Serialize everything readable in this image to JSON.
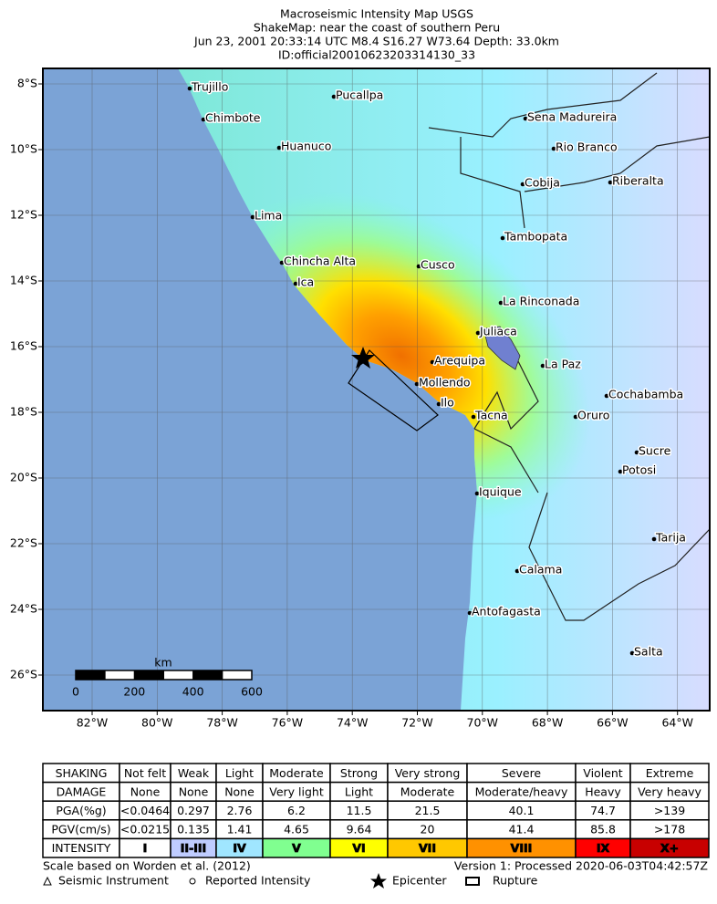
{
  "header": {
    "lines": [
      "Macroseismic Intensity Map USGS",
      "ShakeMap: near the coast of southern Peru",
      "Jun 23, 2001 20:33:14 UTC M8.4 S16.27 W73.64 Depth: 33.0km",
      "ID:official20010623203314130_33"
    ]
  },
  "map": {
    "lat_labels": [
      "8°S",
      "10°S",
      "12°S",
      "14°S",
      "16°S",
      "18°S",
      "20°S",
      "22°S",
      "24°S",
      "26°S"
    ],
    "lon_labels": [
      "82°W",
      "80°W",
      "78°W",
      "76°W",
      "74°W",
      "72°W",
      "70°W",
      "68°W",
      "66°W",
      "64°W"
    ],
    "cities": [
      "Trujillo",
      "Pucallpa",
      "Chimbote",
      "Sena Madureira",
      "Huanuco",
      "Rio Branco",
      "Cobija",
      "Riberalta",
      "Lima",
      "Tambopata",
      "Chincha Alta",
      "Cusco",
      "Ica",
      "La Rinconada",
      "Juliaca",
      "Arequipa",
      "La Paz",
      "Mollendo",
      "Ilo",
      "Tacna",
      "Cochabamba",
      "Oruro",
      "Sucre",
      "Potosi",
      "Iquique",
      "Tarija",
      "Calama",
      "Antofagasta",
      "Salta"
    ],
    "scale_bar": {
      "unit": "km",
      "ticks": [
        0,
        200,
        400,
        600
      ]
    }
  },
  "table": {
    "rows": [
      [
        "SHAKING",
        "Not felt",
        "Weak",
        "Light",
        "Moderate",
        "Strong",
        "Very strong",
        "Severe",
        "Violent",
        "Extreme"
      ],
      [
        "DAMAGE",
        "None",
        "None",
        "None",
        "Very light",
        "Light",
        "Moderate",
        "Moderate/heavy",
        "Heavy",
        "Very heavy"
      ],
      [
        "PGA(%g)",
        "<0.0464",
        "0.297",
        "2.76",
        "6.2",
        "11.5",
        "21.5",
        "40.1",
        "74.7",
        ">139"
      ],
      [
        "PGV(cm/s)",
        "<0.0215",
        "0.135",
        "1.41",
        "4.65",
        "9.64",
        "20",
        "41.4",
        "85.8",
        ">178"
      ],
      [
        "INTENSITY",
        "I",
        "II-III",
        "IV",
        "V",
        "VI",
        "VII",
        "VIII",
        "IX",
        "X+"
      ]
    ],
    "intensity_colors": [
      "#ffffff",
      "#bfccff",
      "#a0e6ff",
      "#80ff90",
      "#ffff00",
      "#ffc800",
      "#ff9100",
      "#ff0000",
      "#c80000"
    ]
  },
  "footer": {
    "scale_note": "Scale based on Worden et al. (2012)",
    "version": "Version 1: Processed 2020-06-03T04:42:57Z",
    "legend": [
      "Seismic Instrument",
      "Reported Intensity",
      "Epicenter",
      "Rupture"
    ]
  }
}
